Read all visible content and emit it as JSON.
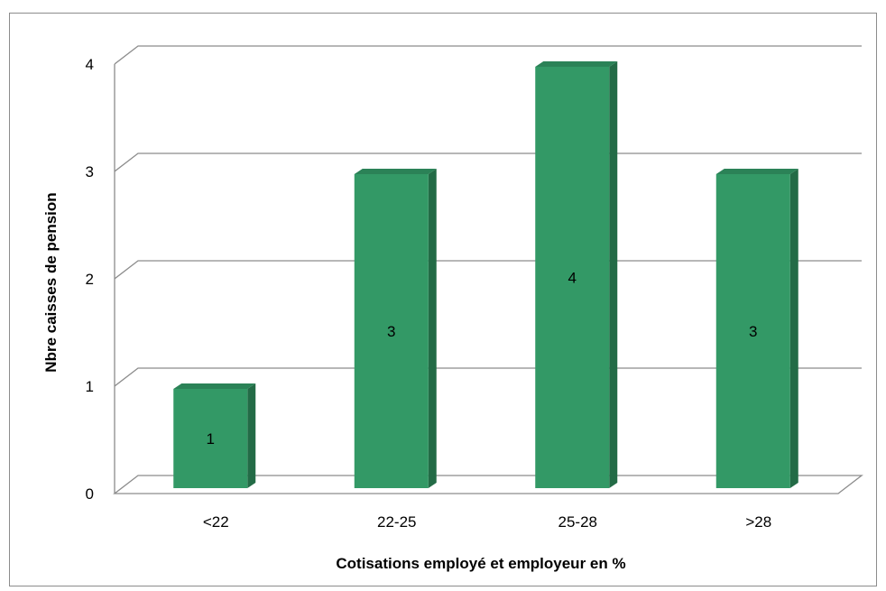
{
  "chart_data": {
    "type": "bar",
    "style": "3d-column",
    "title": "",
    "categories": [
      "<22",
      "22-25",
      "25-28",
      ">28"
    ],
    "values": [
      1,
      3,
      4,
      3
    ],
    "data_labels": [
      "1",
      "3",
      "4",
      "3"
    ],
    "xlabel": "Cotisations employé et employeur en %",
    "ylabel": "Nbre caisses de pension",
    "ylim": [
      0,
      4
    ],
    "yticks": [
      "0",
      "1",
      "2",
      "3",
      "4"
    ],
    "grid": true,
    "legend": "none",
    "colors": {
      "bar_front": "#339966",
      "bar_side": "#236b46",
      "bar_top": "#2b8257",
      "gridline": "#8c8c8c",
      "frame_border": "#8c8c8c"
    }
  }
}
